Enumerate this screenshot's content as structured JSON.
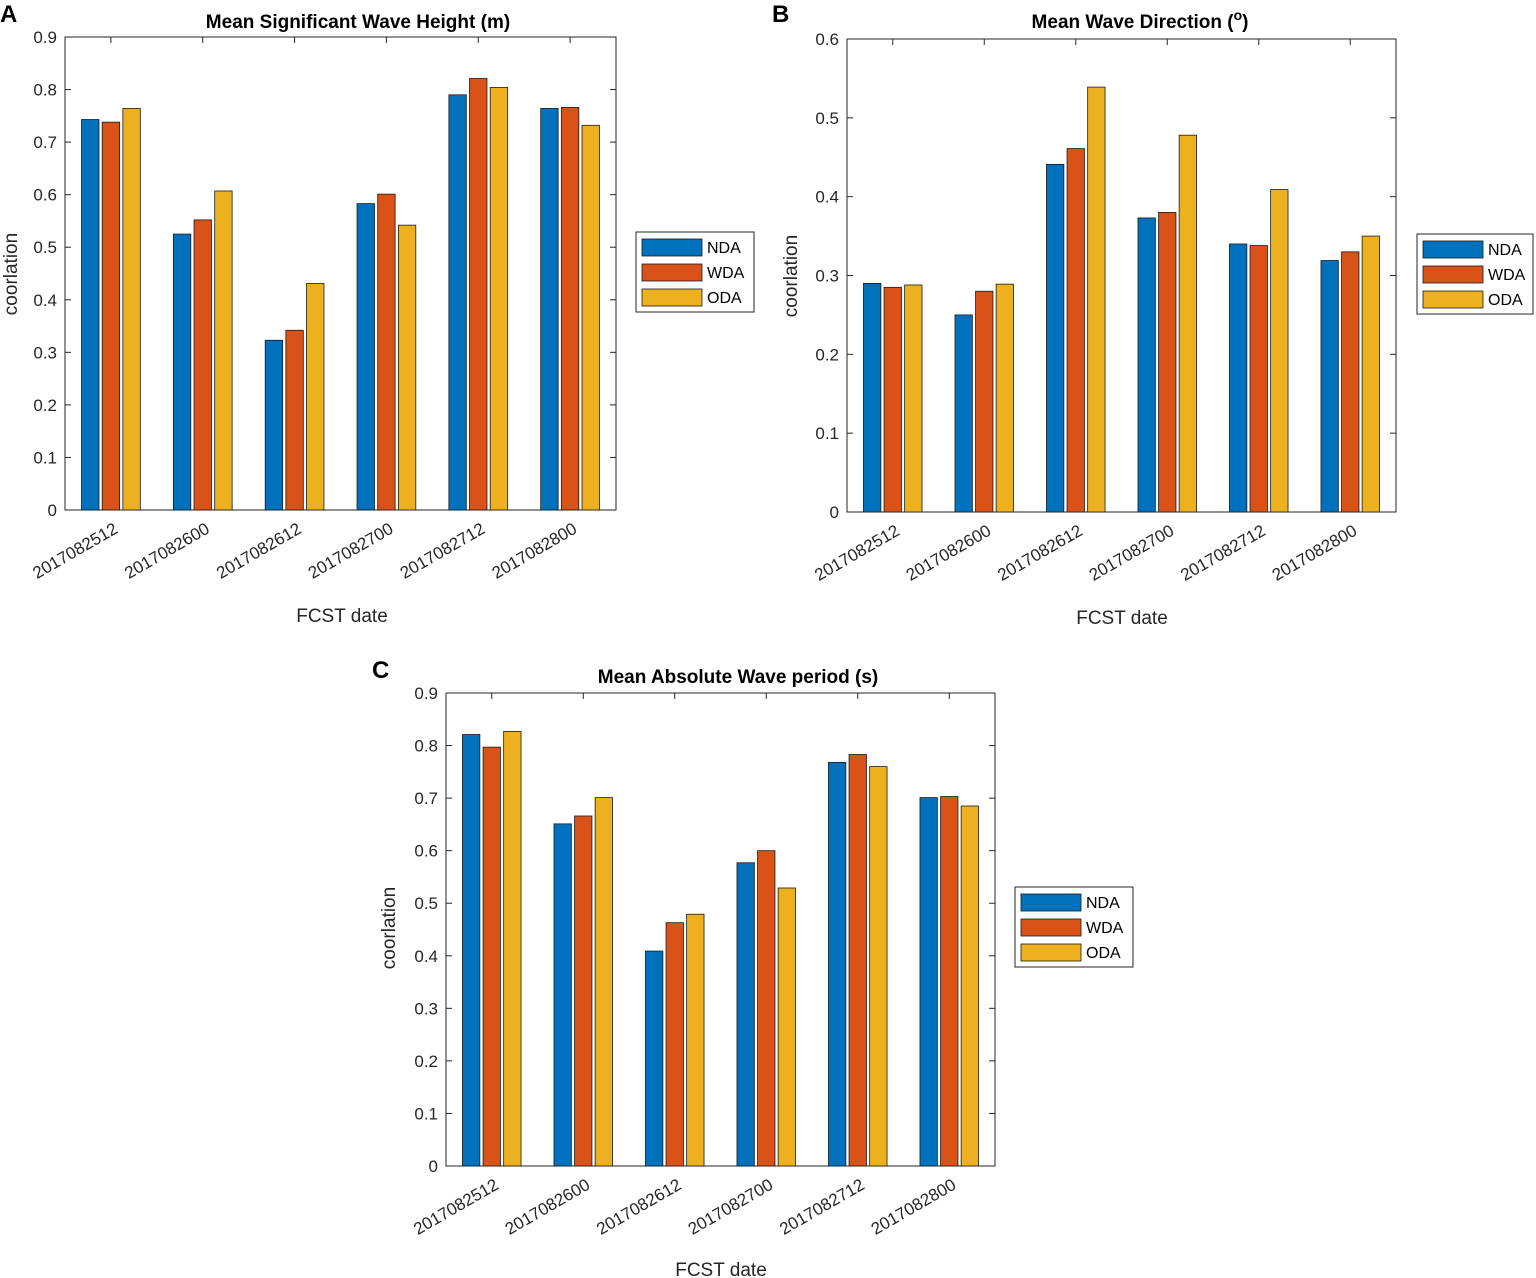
{
  "figure": {
    "series_names": [
      "NDA",
      "WDA",
      "ODA"
    ],
    "series_colors": [
      "#0072BD",
      "#D95319",
      "#EDB120"
    ]
  },
  "chart_data": [
    {
      "panel": "A",
      "type": "bar",
      "title": "Mean Significant Wave Height (m)",
      "xlabel": "FCST date",
      "ylabel": "coorlation",
      "ylim": [
        0,
        0.9
      ],
      "yticks": [
        "0",
        "0.1",
        "0.2",
        "0.3",
        "0.4",
        "0.5",
        "0.6",
        "0.7",
        "0.8",
        "0.9"
      ],
      "categories": [
        "2017082512",
        "2017082600",
        "2017082612",
        "2017082700",
        "2017082712",
        "2017082800"
      ],
      "series": [
        {
          "name": "NDA",
          "values": [
            0.743,
            0.525,
            0.323,
            0.583,
            0.79,
            0.764
          ]
        },
        {
          "name": "WDA",
          "values": [
            0.738,
            0.552,
            0.342,
            0.601,
            0.821,
            0.766
          ]
        },
        {
          "name": "ODA",
          "values": [
            0.764,
            0.607,
            0.431,
            0.542,
            0.804,
            0.732
          ]
        }
      ],
      "legend": [
        "NDA",
        "WDA",
        "ODA"
      ]
    },
    {
      "panel": "B",
      "type": "bar",
      "title": "Mean Wave Direction (",
      "title_sup": "o",
      "title_end": ")",
      "xlabel": "FCST date",
      "ylabel": "coorlation",
      "ylim": [
        0,
        0.6
      ],
      "yticks": [
        "0",
        "0.1",
        "0.2",
        "0.3",
        "0.4",
        "0.5",
        "0.6"
      ],
      "categories": [
        "2017082512",
        "2017082600",
        "2017082612",
        "2017082700",
        "2017082712",
        "2017082800"
      ],
      "series": [
        {
          "name": "NDA",
          "values": [
            0.29,
            0.25,
            0.441,
            0.373,
            0.34,
            0.319
          ]
        },
        {
          "name": "WDA",
          "values": [
            0.285,
            0.28,
            0.461,
            0.38,
            0.338,
            0.33
          ]
        },
        {
          "name": "ODA",
          "values": [
            0.288,
            0.289,
            0.539,
            0.478,
            0.409,
            0.35
          ]
        }
      ],
      "legend": [
        "NDA",
        "WDA",
        "ODA"
      ]
    },
    {
      "panel": "C",
      "type": "bar",
      "title": "Mean Absolute Wave period (s)",
      "xlabel": "FCST date",
      "ylabel": "coorlation",
      "ylim": [
        0,
        0.9
      ],
      "yticks": [
        "0",
        "0.1",
        "0.2",
        "0.3",
        "0.4",
        "0.5",
        "0.6",
        "0.7",
        "0.8",
        "0.9"
      ],
      "categories": [
        "2017082512",
        "2017082600",
        "2017082612",
        "2017082700",
        "2017082712",
        "2017082800"
      ],
      "series": [
        {
          "name": "NDA",
          "values": [
            0.821,
            0.651,
            0.409,
            0.577,
            0.768,
            0.701
          ]
        },
        {
          "name": "WDA",
          "values": [
            0.797,
            0.666,
            0.463,
            0.6,
            0.783,
            0.703
          ]
        },
        {
          "name": "ODA",
          "values": [
            0.827,
            0.701,
            0.479,
            0.529,
            0.76,
            0.685
          ]
        }
      ],
      "legend": [
        "NDA",
        "WDA",
        "ODA"
      ]
    }
  ]
}
